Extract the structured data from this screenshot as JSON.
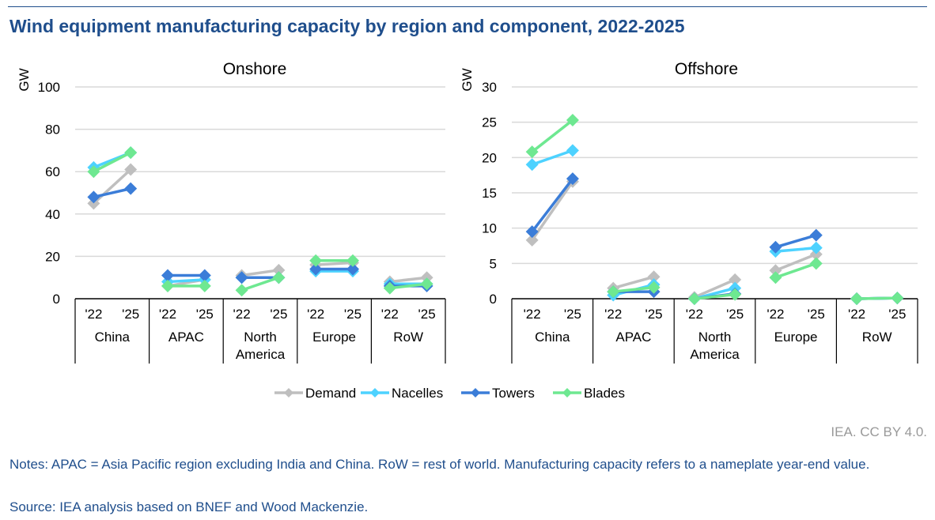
{
  "title": "Wind equipment manufacturing capacity by region and component, 2022-2025",
  "credit": "IEA. CC BY 4.0.",
  "notes": "Notes: APAC = Asia Pacific region excluding India and China. RoW = rest of world. Manufacturing capacity refers to a nameplate year-end value.",
  "source": "Source: IEA analysis based on BNEF and Wood Mackenzie.",
  "chart_data": [
    {
      "type": "line",
      "title": "Onshore",
      "ylabel": "GW",
      "ylim": [
        0,
        100
      ],
      "yticks": [
        0,
        20,
        40,
        60,
        80,
        100
      ],
      "categories": [
        "China",
        "APAC",
        "North America",
        "Europe",
        "RoW"
      ],
      "years": [
        "'22",
        "'25"
      ],
      "series": [
        {
          "name": "Demand",
          "color": "#bfbfbf",
          "values": [
            [
              45,
              61
            ],
            [
              6,
              9
            ],
            [
              11,
              13.5
            ],
            [
              16,
              17
            ],
            [
              8,
              10
            ]
          ]
        },
        {
          "name": "Nacelles",
          "color": "#4dd2ff",
          "values": [
            [
              62,
              69
            ],
            [
              8,
              9
            ],
            [
              10,
              10
            ],
            [
              13,
              13
            ],
            [
              7,
              7
            ]
          ]
        },
        {
          "name": "Towers",
          "color": "#3b7dd8",
          "values": [
            [
              48,
              52
            ],
            [
              11,
              11
            ],
            [
              10,
              10
            ],
            [
              14,
              14
            ],
            [
              6,
              6
            ]
          ]
        },
        {
          "name": "Blades",
          "color": "#6ee891",
          "values": [
            [
              60,
              69
            ],
            [
              6,
              6
            ],
            [
              4,
              10
            ],
            [
              18,
              18
            ],
            [
              5,
              7
            ]
          ]
        }
      ]
    },
    {
      "type": "line",
      "title": "Offshore",
      "ylabel": "GW",
      "ylim": [
        0,
        30
      ],
      "yticks": [
        0,
        5,
        10,
        15,
        20,
        25,
        30
      ],
      "categories": [
        "China",
        "APAC",
        "North America",
        "Europe",
        "RoW"
      ],
      "years": [
        "'22",
        "'25"
      ],
      "series": [
        {
          "name": "Demand",
          "color": "#bfbfbf",
          "values": [
            [
              8.3,
              16.6
            ],
            [
              1.5,
              3.1
            ],
            [
              0.2,
              2.7
            ],
            [
              4,
              6.3
            ],
            [
              0,
              0.1
            ]
          ]
        },
        {
          "name": "Nacelles",
          "color": "#4dd2ff",
          "values": [
            [
              19,
              21
            ],
            [
              0.5,
              2
            ],
            [
              0,
              1.5
            ],
            [
              6.7,
              7.2
            ],
            [
              0,
              0.1
            ]
          ]
        },
        {
          "name": "Towers",
          "color": "#3b7dd8",
          "values": [
            [
              9.5,
              17
            ],
            [
              1,
              1
            ],
            [
              0,
              0.7
            ],
            [
              7.3,
              9
            ],
            [
              0,
              0.1
            ]
          ]
        },
        {
          "name": "Blades",
          "color": "#6ee891",
          "values": [
            [
              20.8,
              25.3
            ],
            [
              1,
              1.6
            ],
            [
              0,
              0.6
            ],
            [
              3,
              5
            ],
            [
              0,
              0.1
            ]
          ]
        }
      ]
    }
  ]
}
